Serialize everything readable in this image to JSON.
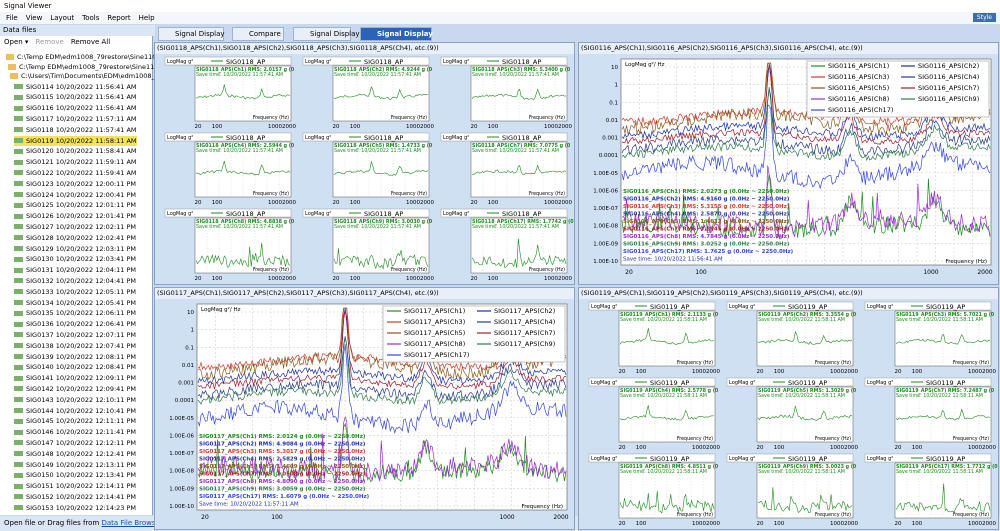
{
  "window": {
    "title": "Signal Viewer",
    "style_button": "Style"
  },
  "menu": [
    "File",
    "View",
    "Layout",
    "Tools",
    "Report",
    "Help"
  ],
  "sidebar": {
    "header": "Data files",
    "toolbar": [
      "Open ▾",
      "Remove",
      "Remove All"
    ],
    "folders": [
      "C:\\Temp EDM\\edm1008_79restore\\Sine1108",
      "C:\\Temp EDM\\edm1008_79restore\\Sine1108",
      "C:\\Users\\Tim\\Documents\\EDM\\edm1008_79"
    ],
    "files": [
      "SIG0114 10/20/2022 11:56:41 AM",
      "SIG0115 10/20/2022 11:56:41 AM",
      "SIG0116 10/20/2022 11:56:41 AM",
      "SIG0117 10/20/2022 11:57:11 AM",
      "SIG0118 10/20/2022 11:57:41 AM",
      "SIG0119 10/20/2022 11:58:11 AM",
      "SIG0120 10/20/2022 11:58:41 AM",
      "SIG0121 10/20/2022 11:59:11 AM",
      "SIG0122 10/20/2022 11:59:41 AM",
      "SIG0123 10/20/2022 12:00:11 PM",
      "SIG0124 10/20/2022 12:00:41 PM",
      "SIG0125 10/20/2022 12:01:11 PM",
      "SIG0126 10/20/2022 12:01:41 PM",
      "SIG0127 10/20/2022 12:02:11 PM",
      "SIG0128 10/20/2022 12:02:41 PM",
      "SIG0129 10/20/2022 12:03:11 PM",
      "SIG0130 10/20/2022 12:03:41 PM",
      "SIG0131 10/20/2022 12:04:11 PM",
      "SIG0132 10/20/2022 12:04:41 PM",
      "SIG0133 10/20/2022 12:05:11 PM",
      "SIG0134 10/20/2022 12:05:41 PM",
      "SIG0135 10/20/2022 12:06:11 PM",
      "SIG0136 10/20/2022 12:06:41 PM",
      "SIG0137 10/20/2022 12:07:11 PM",
      "SIG0138 10/20/2022 12:07:41 PM",
      "SIG0139 10/20/2022 12:08:11 PM",
      "SIG0140 10/20/2022 12:08:41 PM",
      "SIG0141 10/20/2022 12:09:11 PM",
      "SIG0142 10/20/2022 12:09:41 PM",
      "SIG0143 10/20/2022 12:10:11 PM",
      "SIG0144 10/20/2022 12:10:41 PM",
      "SIG0145 10/20/2022 12:11:11 PM",
      "SIG0146 10/20/2022 12:11:41 PM",
      "SIG0147 10/20/2022 12:12:11 PM",
      "SIG0148 10/20/2022 12:12:41 PM",
      "SIG0149 10/20/2022 12:13:11 PM",
      "SIG0150 10/20/2022 12:13:41 PM",
      "SIG0151 10/20/2022 12:14:11 PM",
      "SIG0152 10/20/2022 12:14:41 PM",
      "SIG0153 10/20/2022 12:14:23 PM"
    ],
    "status": "Open file or Drag files from",
    "status_link": "Data File Browser"
  },
  "tabs": [
    "Signal Display",
    "Compare",
    "Signal Display",
    "Signal Display"
  ],
  "x_ticks": [
    "20",
    "100",
    "1000",
    "2000"
  ],
  "x_label": "Frequency (Hz)",
  "panels": [
    {
      "header": "(SIG0118_APS(Ch1),SIG0118_APS(Ch2),SIG0118_APS(Ch3),SIG0118_APS(Ch4), etc.(9))",
      "y_label": "LogMag g²",
      "plot_title": "SIG0118_AP",
      "save_time": "Save time: 10/20/2022 11:57:41 AM",
      "rms": [
        "SIG0118_APS(Ch1) RMS: 2.0157 g (0",
        "SIG0118_APS(Ch2) RMS: 4.9244 g (0",
        "SIG0118_APS(Ch3) RMS: 5.3400 g (0",
        "SIG0118_APS(Ch4) RMS: 2.5944 g (0",
        "SIG0118_APS(Ch5) RMS: 1.4733 g (0",
        "SIG0118_APS(Ch7) RMS: 7.0775 g (0",
        "SIG0118_APS(Ch8) RMS: 4.8838 g (0",
        "SIG0118_APS(Ch9) RMS: 3.0030 g (0",
        "SIG0118_APS(Ch17) RMS: 1.7742 g (0"
      ]
    },
    {
      "header": "(SIG0116_APS(Ch1),SIG0116_APS(Ch2),SIG0116_APS(Ch3),SIG0116_APS(Ch4), etc.(9))",
      "y_label": "LogMag g²/ Hz",
      "save_time": "Save time: 10/20/2022 11:56:41 AM",
      "y_ticks": [
        "10",
        "1",
        "0.1",
        "0.01",
        "0.001",
        "0.0001",
        "1.00E-05",
        "1.00E-06",
        "1.00E-07",
        "1.00E-08",
        "1.00E-09",
        "1.00E-10"
      ],
      "legend": [
        "SIG0116_APS(Ch1)",
        "SIG0116_APS(Ch2)",
        "SIG0116_APS(Ch3)",
        "SIG0116_APS(Ch4)",
        "SIG0116_APS(Ch5)",
        "SIG0116_APS(Ch7)",
        "SIG0116_APS(Ch8)",
        "SIG0116_APS(Ch9)",
        "SIG0116_APS(Ch17)"
      ],
      "rms": [
        "SIG0116_APS(Ch1) RMS: 2.0273 g (0.0Hz ~ 2250.0Hz)",
        "SIG0116_APS(Ch2) RMS: 4.9160 g (0.0Hz ~ 2250.0Hz)",
        "SIG0116_APS(Ch3) RMS: 5.3155 g (0.0Hz ~ 2250.0Hz)",
        "SIG0116_APS(Ch4) RMS: 2.5870 g (0.0Hz ~ 2250.0Hz)",
        "SIG0116_APS(Ch5) RMS: 1.4612 g (0.0Hz ~ 2250.0Hz)",
        "SIG0116_APS(Ch7) RMS: 7.8145 g (0.0Hz ~ 2250.0Hz)",
        "SIG0116_APS(Ch8) RMS: 4.7845 g (0.0Hz ~ 2250.0Hz)",
        "SIG0116_APS(Ch9) RMS: 3.0252 g (0.0Hz ~ 2250.0Hz)",
        "SIG0116_APS(Ch17) RMS: 1.7625 g (0.0Hz ~ 2250.0Hz)"
      ]
    },
    {
      "header": "(SIG0117_APS(Ch1),SIG0117_APS(Ch2),SIG0117_APS(Ch3),SIG0117_APS(Ch4), etc.(9))",
      "y_label": "LogMag g²/ Hz",
      "save_time": "Save time: 10/20/2022 11:57:11 AM",
      "y_ticks": [
        "10",
        "1",
        "0.1",
        "0.01",
        "0.001",
        "0.0001",
        "1.00E-05",
        "1.00E-06",
        "1.00E-07",
        "1.00E-08",
        "1.00E-09",
        "1.00E-10"
      ],
      "legend": [
        "SIG0117_APS(Ch1)",
        "SIG0117_APS(Ch2)",
        "SIG0117_APS(Ch3)",
        "SIG0117_APS(Ch4)",
        "SIG0117_APS(Ch5)",
        "SIG0117_APS(Ch7)",
        "SIG0117_APS(Ch8)",
        "SIG0117_APS(Ch9)",
        "SIG0117_APS(Ch17)"
      ],
      "rms": [
        "SIG0117_APS(Ch1) RMS: 2.0124 g (0.0Hz ~ 2250.0Hz)",
        "SIG0117_APS(Ch2) RMS: 4.9084 g (0.0Hz ~ 2250.0Hz)",
        "SIG0117_APS(Ch3) RMS: 5.3017 g (0.0Hz ~ 2250.0Hz)",
        "SIG0117_APS(Ch4) RMS: 2.5829 g (0.0Hz ~ 2250.0Hz)",
        "SIG0117_APS(Ch5) RMS: 1.4609 g (0.0Hz ~ 2250.0Hz)",
        "SIG0117_APS(Ch7) RMS: 7.0508 g (0.0Hz ~ 2250.0Hz)",
        "SIG0117_APS(Ch8) RMS: 4.8090 g (0.0Hz ~ 2250.0Hz)",
        "SIG0117_APS(Ch9) RMS: 3.0059 g (0.0Hz ~ 2250.0Hz)",
        "SIG0117_APS(Ch17) RMS: 1.6079 g (0.0Hz ~ 2250.0Hz)"
      ]
    },
    {
      "header": "(SIG0119_APS(Ch1),SIG0119_APS(Ch2),SIG0119_APS(Ch3),SIG0119_APS(Ch4), etc.(9))",
      "y_label": "LogMag g²",
      "plot_title": "SIG0119_AP",
      "save_time": "Save time: 10/20/2022 11:58:11 AM",
      "rms": [
        "SIG0119_APS(Ch1) RMS: 2.1133 g (0",
        "SIG0119_APS(Ch2) RMS: 3.3554 g (0",
        "SIG0119_APS(Ch3) RMS: 5.7021 g (0",
        "SIG0119_APS(Ch4) RMS: 2.5778 g (0",
        "SIG0119_APS(Ch5) RMS: 1.3029 g (0",
        "SIG0119_APS(Ch7) RMS: 7.2487 g (0",
        "SIG0119_APS(Ch8) RMS: 4.8511 g (0",
        "SIG0119_APS(Ch9) RMS: 3.0023 g (0",
        "SIG0119_APS(Ch17) RMS: 1.7712 g (0"
      ]
    }
  ]
}
